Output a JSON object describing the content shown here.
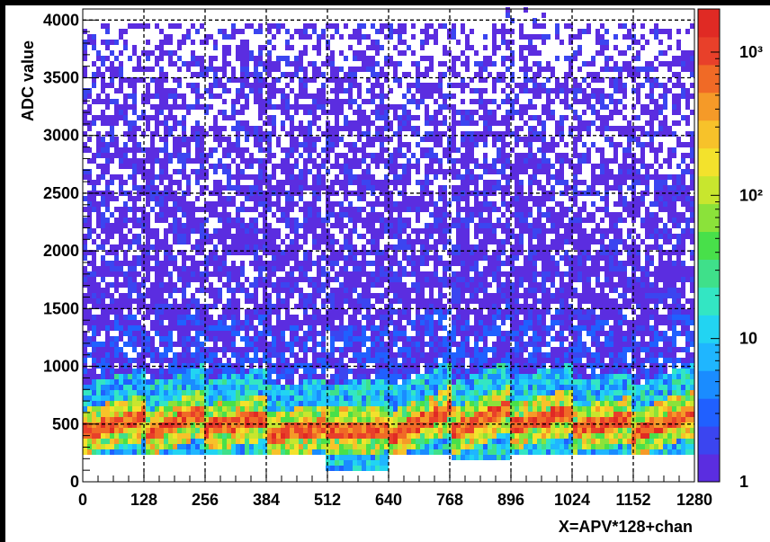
{
  "chart_data": {
    "type": "heatmap",
    "xlabel": "X=APV*128+chan",
    "ylabel": "ADC value",
    "xlim": [
      0,
      1280
    ],
    "ylim": [
      0,
      4096
    ],
    "grid": true,
    "x_ticks": [
      "0",
      "128",
      "256",
      "384",
      "512",
      "640",
      "768",
      "896",
      "1024",
      "1152",
      "1280"
    ],
    "x_tick_values": [
      0,
      128,
      256,
      384,
      512,
      640,
      768,
      896,
      1024,
      1152,
      1280
    ],
    "y_ticks": [
      "0",
      "500",
      "1000",
      "1500",
      "2000",
      "2500",
      "3000",
      "3500",
      "4000"
    ],
    "y_tick_values": [
      0,
      500,
      1000,
      1500,
      2000,
      2500,
      3000,
      3500,
      4000
    ],
    "z_scale": "log",
    "z_range": [
      1,
      2000
    ],
    "z_ticks": [
      "1",
      "10",
      "10²",
      "10³"
    ],
    "z_tick_values": [
      1,
      10,
      100,
      1000
    ],
    "apv_segments": [
      {
        "x_start": 0,
        "x_end": 128,
        "pedestal_start": 420,
        "pedestal_end": 560,
        "min_adc": 230
      },
      {
        "x_start": 128,
        "x_end": 256,
        "pedestal_start": 400,
        "pedestal_end": 600,
        "min_adc": 230
      },
      {
        "x_start": 256,
        "x_end": 384,
        "pedestal_start": 460,
        "pedestal_end": 560,
        "min_adc": 230
      },
      {
        "x_start": 384,
        "x_end": 512,
        "pedestal_start": 390,
        "pedestal_end": 480,
        "min_adc": 230
      },
      {
        "x_start": 512,
        "x_end": 640,
        "pedestal_start": 430,
        "pedestal_end": 460,
        "min_adc": 80
      },
      {
        "x_start": 640,
        "x_end": 768,
        "pedestal_start": 390,
        "pedestal_end": 620,
        "min_adc": 210
      },
      {
        "x_start": 768,
        "x_end": 896,
        "pedestal_start": 420,
        "pedestal_end": 640,
        "min_adc": 200
      },
      {
        "x_start": 896,
        "x_end": 1024,
        "pedestal_start": 480,
        "pedestal_end": 600,
        "min_adc": 230
      },
      {
        "x_start": 1024,
        "x_end": 1152,
        "pedestal_start": 450,
        "pedestal_end": 540,
        "min_adc": 230
      },
      {
        "x_start": 1152,
        "x_end": 1280,
        "pedestal_start": 410,
        "pedestal_end": 600,
        "min_adc": 250
      }
    ],
    "max_adc": 4096
  },
  "colors": {
    "frame_background": "#000000",
    "plot_background": "#ffffff",
    "grid": "#000000",
    "axis_text": "#000000",
    "palette": [
      "#5b2de0",
      "#3b45f0",
      "#2060ff",
      "#1a8cff",
      "#1fb6ff",
      "#22d4f2",
      "#33e6c3",
      "#3fe08a",
      "#48e04a",
      "#8be23a",
      "#c8e62e",
      "#f3e22c",
      "#f7c22a",
      "#f59a28",
      "#f06a26",
      "#e8402a",
      "#e02a24"
    ]
  }
}
